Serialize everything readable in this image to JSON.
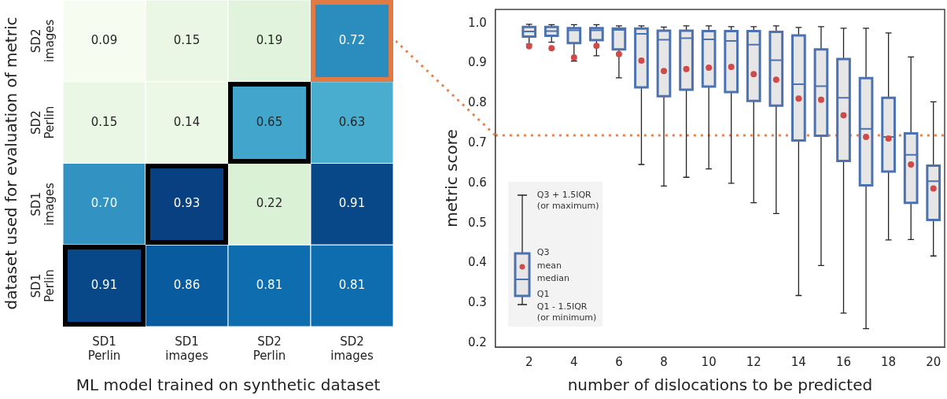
{
  "chart_data": [
    {
      "type": "heatmap",
      "xlabel": "ML model trained on synthetic dataset",
      "ylabel": "dataset used for evaluation of metric",
      "categories": [
        "SD1\nPerlin",
        "SD1\nimages",
        "SD2\nPerlin",
        "SD2\nimages"
      ],
      "y_categories": [
        "SD2\nimages",
        "SD2\nPerlin",
        "SD1\nimages",
        "SD1\nPerlin"
      ],
      "cells": [
        [
          0.09,
          0.15,
          0.19,
          0.72
        ],
        [
          0.15,
          0.14,
          0.65,
          0.63
        ],
        [
          0.7,
          0.93,
          0.22,
          0.91
        ],
        [
          0.91,
          0.86,
          0.81,
          0.81
        ]
      ],
      "cell_labels": [
        [
          "0.09",
          "0.15",
          "0.19",
          "0.72"
        ],
        [
          "0.15",
          "0.14",
          "0.65",
          "0.63"
        ],
        [
          "0.70",
          "0.93",
          "0.22",
          "0.91"
        ],
        [
          "0.91",
          "0.86",
          "0.81",
          "0.81"
        ]
      ],
      "data_labels": true
    },
    {
      "type": "box",
      "xlabel": "number of dislocations to be predicted",
      "ylabel": "metric score",
      "color": "#e6e6e6",
      "categories": [
        "2",
        null,
        "4",
        null,
        "6",
        null,
        "8",
        null,
        "10",
        null,
        "12",
        null,
        "14",
        null,
        "16",
        null,
        "18",
        null,
        "20"
      ],
      "boxes": [
        {
          "low": 0.948,
          "q1": 0.967,
          "median": 0.98,
          "q3": 0.991,
          "high": 0.998,
          "mean": 0.943
        },
        {
          "low": 0.953,
          "q1": 0.969,
          "median": 0.981,
          "q3": 0.991,
          "high": 0.997,
          "mean": 0.938
        },
        {
          "low": 0.906,
          "q1": 0.951,
          "median": 0.983,
          "q3": 0.988,
          "high": 0.997,
          "mean": 0.915
        },
        {
          "low": 0.919,
          "q1": 0.958,
          "median": 0.983,
          "q3": 0.988,
          "high": 0.997,
          "mean": 0.944
        },
        {
          "low": 0.864,
          "q1": 0.935,
          "median": 0.984,
          "q3": 0.987,
          "high": 0.994,
          "mean": 0.923
        },
        {
          "low": 0.647,
          "q1": 0.84,
          "median": 0.974,
          "q3": 0.987,
          "high": 0.994,
          "mean": 0.907
        },
        {
          "low": 0.593,
          "q1": 0.818,
          "median": 0.959,
          "q3": 0.982,
          "high": 0.991,
          "mean": 0.881
        },
        {
          "low": 0.615,
          "q1": 0.834,
          "median": 0.963,
          "q3": 0.982,
          "high": 0.994,
          "mean": 0.886
        },
        {
          "low": 0.636,
          "q1": 0.842,
          "median": 0.96,
          "q3": 0.981,
          "high": 0.994,
          "mean": 0.889
        },
        {
          "low": 0.6,
          "q1": 0.828,
          "median": 0.956,
          "q3": 0.981,
          "high": 0.992,
          "mean": 0.891
        },
        {
          "low": 0.551,
          "q1": 0.806,
          "median": 0.947,
          "q3": 0.981,
          "high": 0.992,
          "mean": 0.873
        },
        {
          "low": 0.524,
          "q1": 0.794,
          "median": 0.908,
          "q3": 0.979,
          "high": 0.994,
          "mean": 0.859
        },
        {
          "low": 0.319,
          "q1": 0.707,
          "median": 0.848,
          "q3": 0.97,
          "high": 0.99,
          "mean": 0.812
        },
        {
          "low": 0.394,
          "q1": 0.719,
          "median": 0.843,
          "q3": 0.935,
          "high": 0.992,
          "mean": 0.809
        },
        {
          "low": 0.275,
          "q1": 0.656,
          "median": 0.814,
          "q3": 0.911,
          "high": 0.988,
          "mean": 0.77
        },
        {
          "low": 0.236,
          "q1": 0.595,
          "median": 0.736,
          "q3": 0.863,
          "high": 0.988,
          "mean": 0.716
        },
        {
          "low": 0.458,
          "q1": 0.629,
          "median": 0.716,
          "q3": 0.814,
          "high": 0.976,
          "mean": 0.712
        },
        {
          "low": 0.459,
          "q1": 0.551,
          "median": 0.671,
          "q3": 0.725,
          "high": 0.916,
          "mean": 0.647
        },
        {
          "low": 0.418,
          "q1": 0.508,
          "median": 0.605,
          "q3": 0.644,
          "high": 0.804,
          "mean": 0.587
        }
      ],
      "ylim": [
        0.19,
        1.035
      ],
      "yticks": [
        0.2,
        0.3,
        0.4,
        0.5,
        0.6,
        0.7,
        0.8,
        0.9,
        {
          "value": 1,
          "label": "1.0"
        }
      ],
      "ref_lines": [
        {
          "axis": "y",
          "value": 0.72,
          "color": "#e8824a",
          "line_style": "dotted"
        }
      ],
      "annotations": [
        "Q3 + 1.5IQR\n(or maximum)",
        "Q3",
        "mean",
        "median",
        "Q1",
        "Q1 - 1.5IQR\n(or minimum)"
      ],
      "grid": false
    }
  ]
}
